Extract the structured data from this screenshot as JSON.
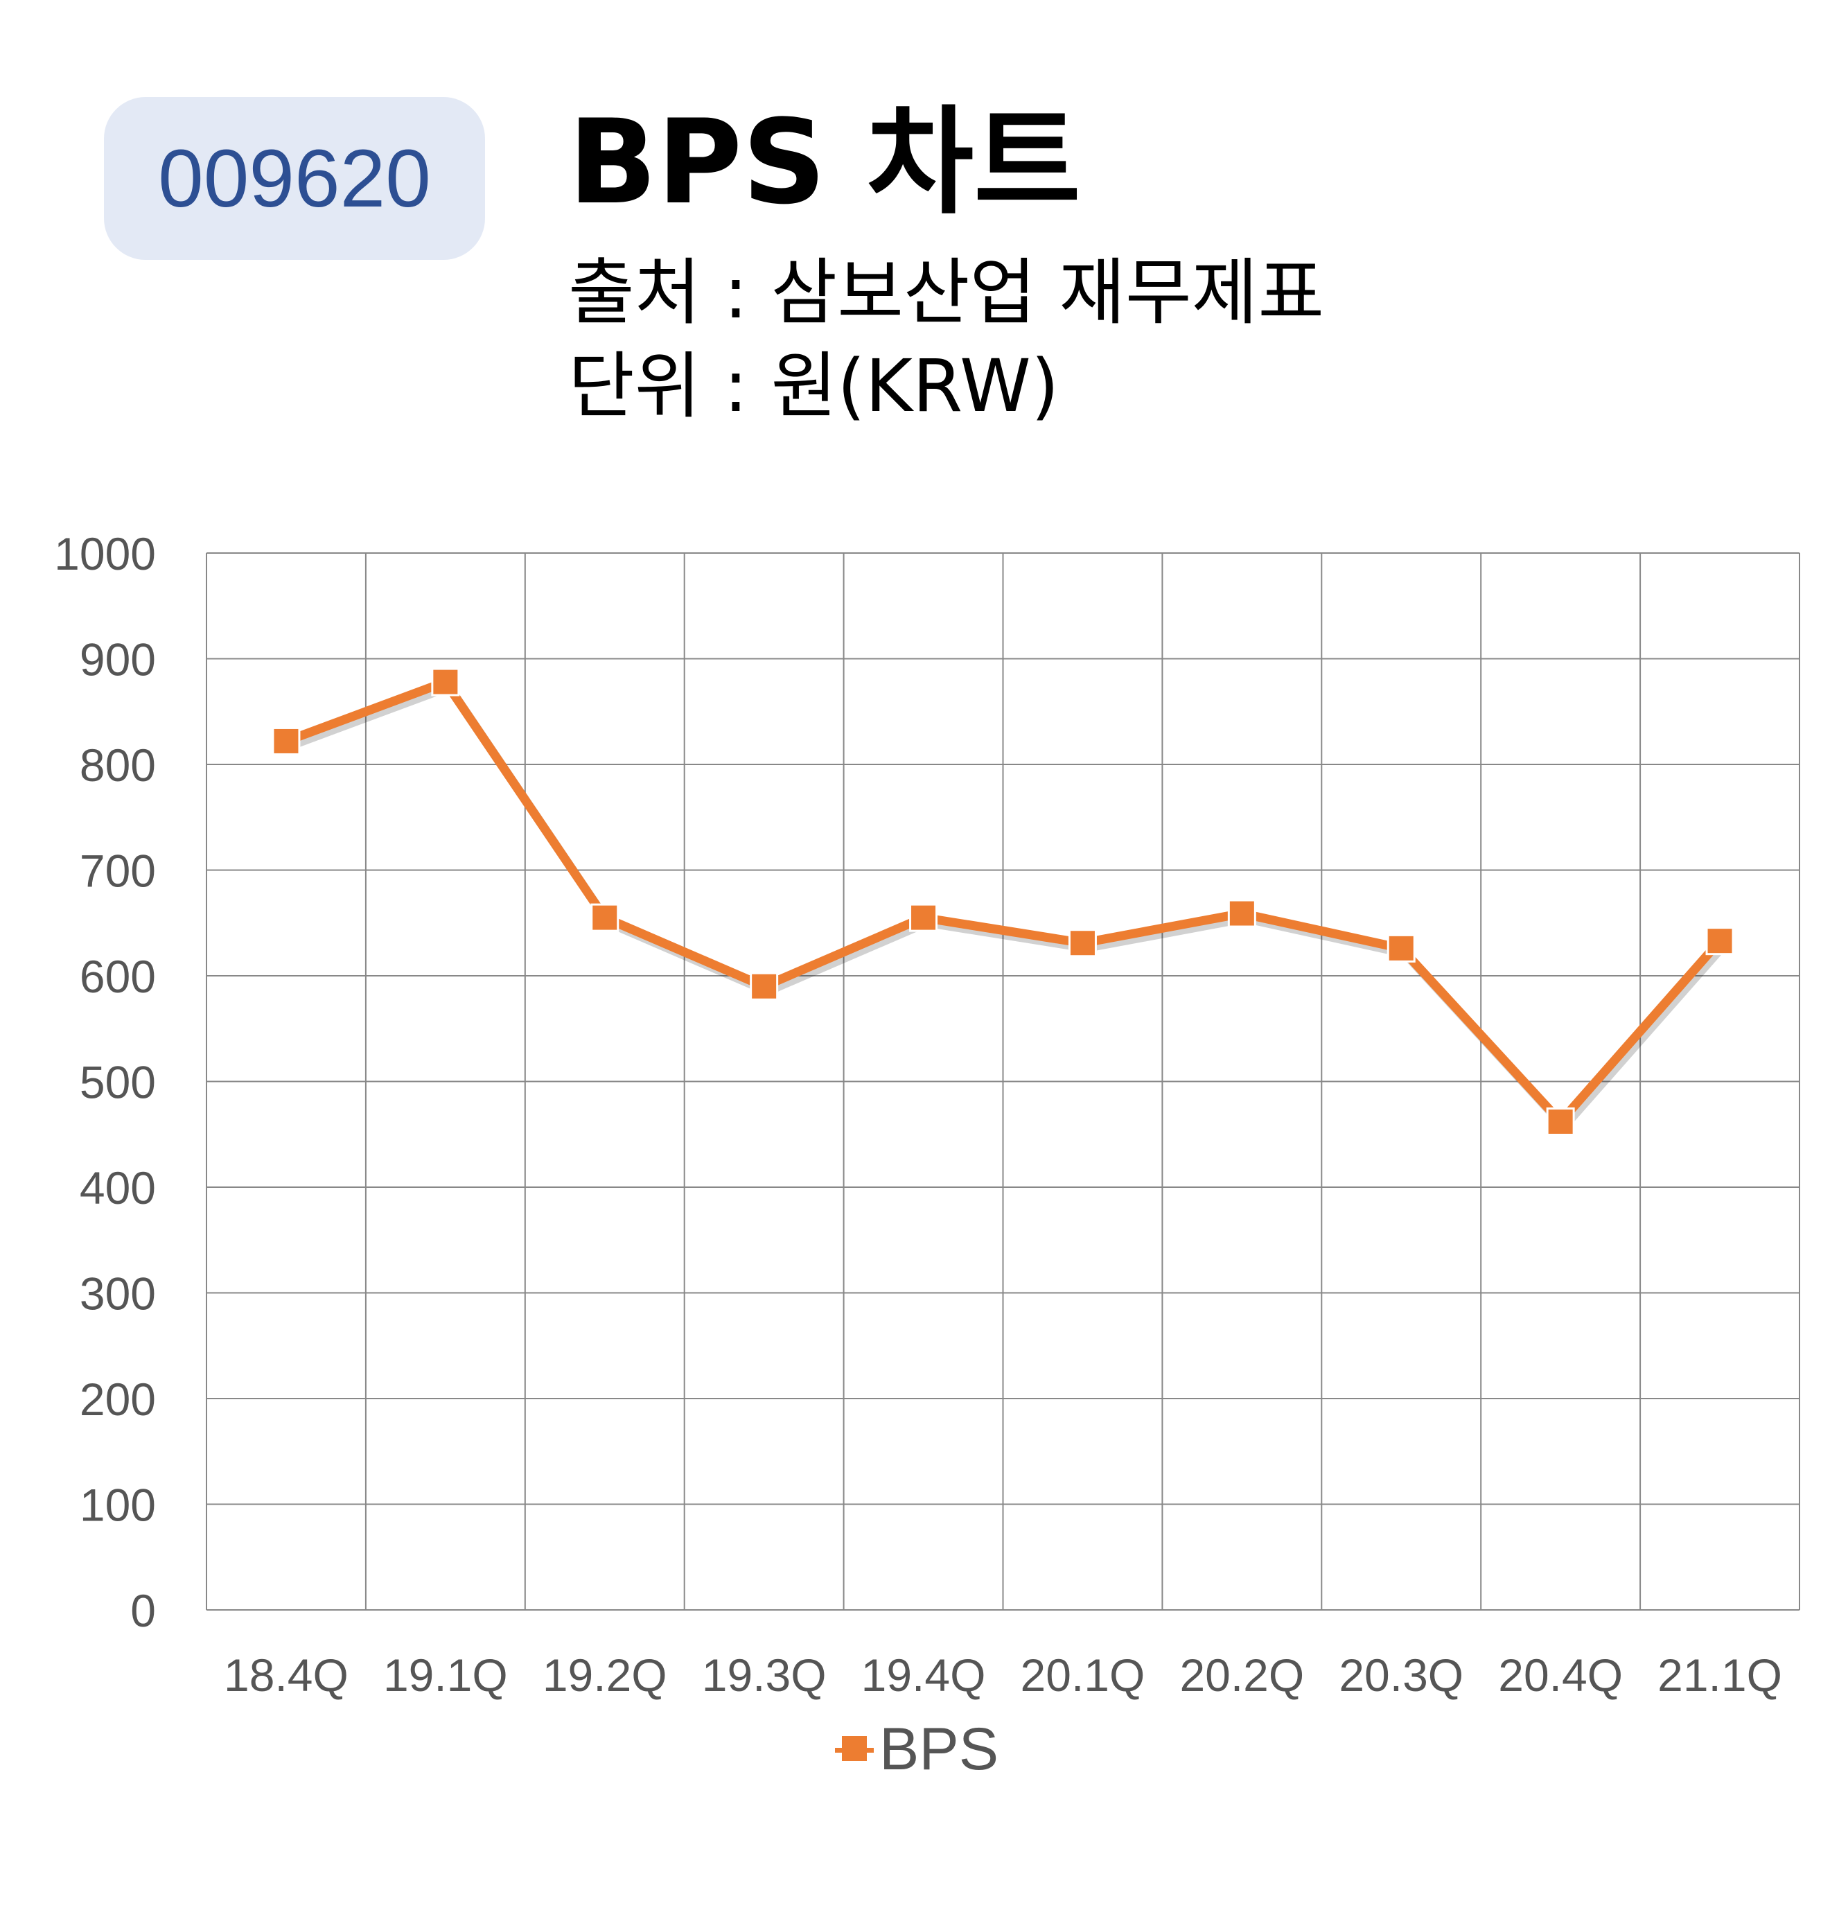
{
  "stock_code": "009620",
  "title": "BPS 차트",
  "source_line": "출처 : 삼보산업 재무제표",
  "unit_line": "단위 : 원(KRW)",
  "colors": {
    "series": "#ed7d31",
    "badge_bg": "#e3e9f5",
    "badge_text": "#2d4f93",
    "grid": "#888888",
    "axis_text": "#555555"
  },
  "chart_data": {
    "type": "line",
    "categories": [
      "18.4Q",
      "19.1Q",
      "19.2Q",
      "19.3Q",
      "19.4Q",
      "20.1Q",
      "20.2Q",
      "20.3Q",
      "20.4Q",
      "21.1Q"
    ],
    "series": [
      {
        "name": "BPS",
        "values": [
          822,
          878,
          655,
          590,
          655,
          631,
          659,
          626,
          462,
          633
        ]
      }
    ],
    "ylim": [
      0,
      1000
    ],
    "yticks": [
      0,
      100,
      200,
      300,
      400,
      500,
      600,
      700,
      800,
      900,
      1000
    ],
    "grid": true,
    "legend_position": "bottom",
    "marker": "square"
  }
}
